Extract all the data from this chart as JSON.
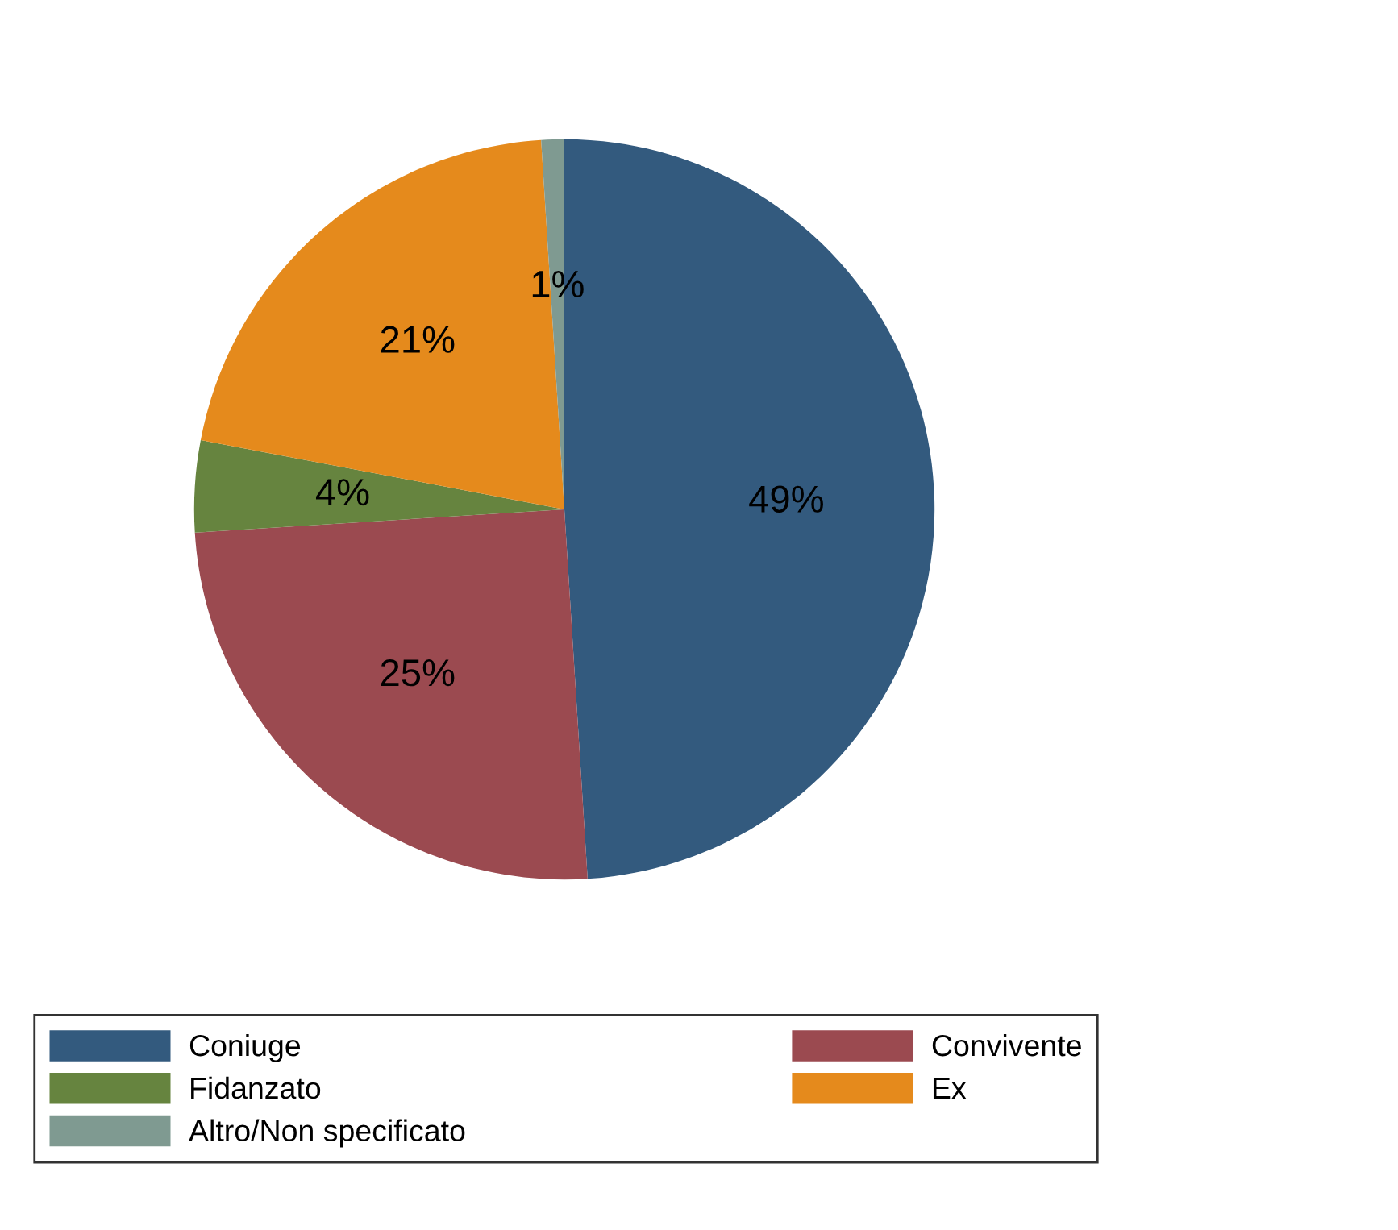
{
  "chart_data": {
    "type": "pie",
    "categories": [
      "Coniuge",
      "Convivente",
      "Fidanzato",
      "Ex",
      "Altro/Non specificato"
    ],
    "values": [
      49,
      25,
      4,
      21,
      1
    ],
    "value_labels": [
      "49%",
      "25%",
      "4%",
      "21%",
      "1%"
    ],
    "colors": [
      "#335a7e",
      "#9b4a50",
      "#66843f",
      "#e58a1c",
      "#7f9a91"
    ],
    "legend": "bottom"
  }
}
